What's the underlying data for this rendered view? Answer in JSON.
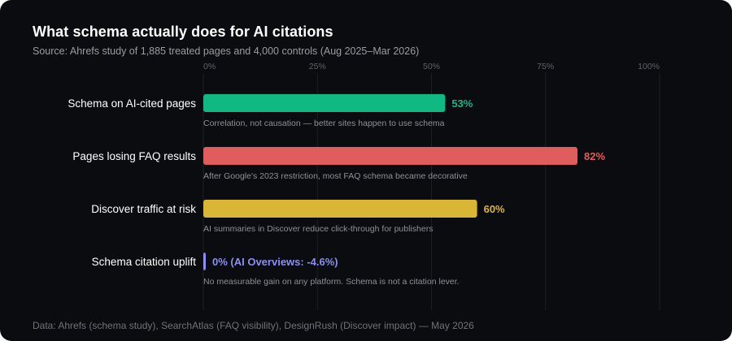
{
  "header": {
    "title": "What schema actually does for AI citations",
    "subtitle": "Source: Ahrefs study of 1,885 treated pages and 4,000 controls (Aug 2025–Mar 2026)"
  },
  "footer": {
    "text": "Data: Ahrefs (schema study), SearchAtlas (FAQ visibility), DesignRush (Discover impact) — May 2026"
  },
  "chart_data": {
    "type": "bar",
    "orientation": "horizontal",
    "title": "What schema actually does for AI citations",
    "subtitle": "Source: Ahrefs study of 1,885 treated pages and 4,000 controls (Aug 2025–Mar 2026)",
    "xlim": [
      0,
      100
    ],
    "x_ticks": [
      0,
      25,
      50,
      75,
      100
    ],
    "x_tick_labels": [
      "0%",
      "25%",
      "50%",
      "75%",
      "100%"
    ],
    "grid": true,
    "categories": [
      "Schema on AI-cited pages",
      "Pages losing FAQ results",
      "Discover traffic at risk",
      "Schema citation uplift"
    ],
    "values": [
      53,
      82,
      60,
      0
    ],
    "value_labels": [
      "53%",
      "82%",
      "60%",
      "0% (AI Overviews: -4.6%)"
    ],
    "notes": [
      "Correlation, not causation — better sites happen to use schema",
      "After Google's 2023 restriction, most FAQ schema became decorative",
      "AI summaries in Discover reduce click-through for publishers",
      "No measurable gain on any platform. Schema is not a citation lever."
    ],
    "colors": [
      "#10b981",
      "#e05d5d",
      "#d9b634",
      "#8b8ff0"
    ]
  }
}
